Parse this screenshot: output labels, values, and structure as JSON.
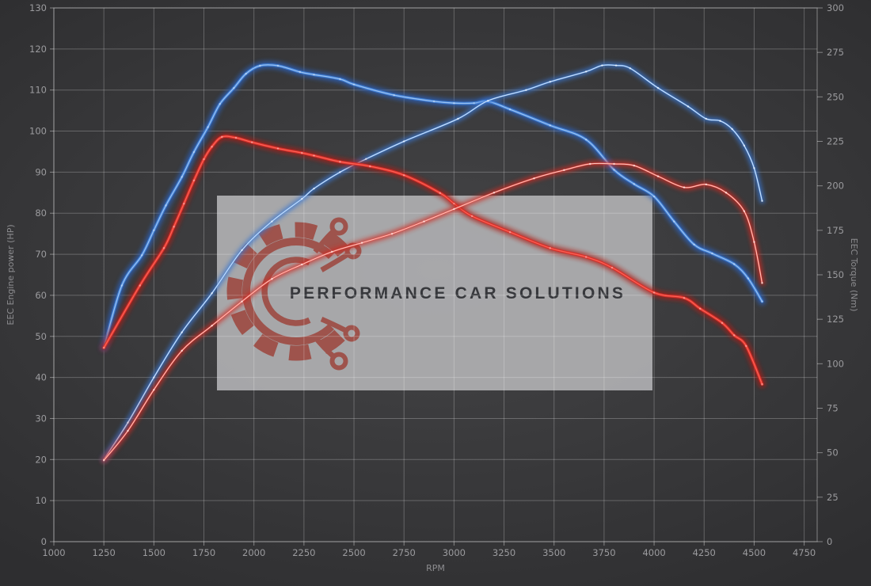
{
  "watermark": {
    "text": "PERFORMANCE CAR SOLUTIONS",
    "box_color": "#b3b3b5",
    "logo_color": "#9d4138",
    "text_color": "#37383c"
  },
  "colors": {
    "background": "#3a3a3c",
    "grid": "#6a6a6d",
    "axis_labels": "#9b9b9e",
    "blue_main": "#3f7fd6",
    "red_main": "#d93028"
  },
  "chart_data": {
    "type": "line",
    "title": "",
    "xlabel": "RPM",
    "ylabel_left": "EEC Engine power (HP)",
    "ylabel_right": "EEC Torque (Nm)",
    "x_axis": {
      "min": 1000,
      "max": 4750,
      "step": 250,
      "ticks": [
        1000,
        1250,
        1500,
        1750,
        2000,
        2250,
        2500,
        2750,
        3000,
        3250,
        3500,
        3750,
        4000,
        4250,
        4500,
        4750
      ]
    },
    "left_axis": {
      "min": 0,
      "max": 130,
      "step": 10,
      "ticks": [
        0,
        10,
        20,
        30,
        40,
        50,
        60,
        70,
        80,
        90,
        100,
        110,
        120,
        130
      ]
    },
    "right_axis": {
      "min": 0,
      "max": 300,
      "step": 25,
      "ticks": [
        0,
        25,
        50,
        75,
        100,
        125,
        150,
        175,
        200,
        225,
        250,
        275,
        300
      ]
    },
    "grid": true,
    "legend": false,
    "series": [
      {
        "name": "torque-tuned-blue",
        "axis": "right",
        "unit": "Nm",
        "style": "thick",
        "color": "#3f7fd6",
        "glow": "#2a64c2",
        "core": "#a8cbf5",
        "points": [
          [
            1250,
            109
          ],
          [
            1340,
            144
          ],
          [
            1440,
            161
          ],
          [
            1500,
            175
          ],
          [
            1560,
            189
          ],
          [
            1640,
            205
          ],
          [
            1700,
            219
          ],
          [
            1770,
            233
          ],
          [
            1830,
            246
          ],
          [
            1900,
            255
          ],
          [
            1960,
            263
          ],
          [
            2030,
            267.5
          ],
          [
            2120,
            267.5
          ],
          [
            2230,
            264
          ],
          [
            2300,
            262.5
          ],
          [
            2430,
            260
          ],
          [
            2500,
            257
          ],
          [
            2700,
            251
          ],
          [
            2900,
            247.5
          ],
          [
            3000,
            246.5
          ],
          [
            3100,
            246.5
          ],
          [
            3170,
            247.5
          ],
          [
            3280,
            243
          ],
          [
            3480,
            234
          ],
          [
            3660,
            226
          ],
          [
            3800,
            209
          ],
          [
            3900,
            201
          ],
          [
            4000,
            194
          ],
          [
            4100,
            180
          ],
          [
            4200,
            167
          ],
          [
            4290,
            162
          ],
          [
            4400,
            156
          ],
          [
            4470,
            148
          ],
          [
            4540,
            135
          ]
        ]
      },
      {
        "name": "power-tuned-blue",
        "axis": "left",
        "unit": "HP",
        "style": "thin",
        "color": "#5b97e3",
        "glow": "#3a77d0",
        "core": "#e9f2ff",
        "points": [
          [
            1250,
            20
          ],
          [
            1370,
            29
          ],
          [
            1500,
            40
          ],
          [
            1640,
            51
          ],
          [
            1790,
            60.5
          ],
          [
            1940,
            71
          ],
          [
            2090,
            78
          ],
          [
            2240,
            83.5
          ],
          [
            2300,
            86
          ],
          [
            2430,
            90
          ],
          [
            2560,
            93.2
          ],
          [
            2750,
            97.5
          ],
          [
            3020,
            103
          ],
          [
            3170,
            107.4
          ],
          [
            3360,
            110
          ],
          [
            3480,
            112
          ],
          [
            3660,
            114.5
          ],
          [
            3740,
            116
          ],
          [
            3810,
            116
          ],
          [
            3880,
            115.3
          ],
          [
            4020,
            110.5
          ],
          [
            4170,
            106
          ],
          [
            4260,
            103
          ],
          [
            4330,
            102.5
          ],
          [
            4390,
            100.5
          ],
          [
            4450,
            96.5
          ],
          [
            4500,
            91
          ],
          [
            4540,
            83
          ]
        ]
      },
      {
        "name": "torque-stock-red",
        "axis": "right",
        "unit": "Nm",
        "style": "thick",
        "color": "#d93028",
        "glow": "#ad1d16",
        "core": "#ff6a5e",
        "points": [
          [
            1250,
            109
          ],
          [
            1430,
            144
          ],
          [
            1550,
            165
          ],
          [
            1600,
            177
          ],
          [
            1650,
            190
          ],
          [
            1700,
            203
          ],
          [
            1750,
            215
          ],
          [
            1790,
            222
          ],
          [
            1840,
            227.5
          ],
          [
            1910,
            227
          ],
          [
            1990,
            224.5
          ],
          [
            2120,
            221
          ],
          [
            2240,
            218.5
          ],
          [
            2300,
            217
          ],
          [
            2430,
            213.5
          ],
          [
            2580,
            211
          ],
          [
            2750,
            206
          ],
          [
            2930,
            196
          ],
          [
            3000,
            190
          ],
          [
            3090,
            183
          ],
          [
            3280,
            174
          ],
          [
            3480,
            165
          ],
          [
            3660,
            160
          ],
          [
            3790,
            154
          ],
          [
            4000,
            140
          ],
          [
            4150,
            137
          ],
          [
            4230,
            131
          ],
          [
            4340,
            123
          ],
          [
            4400,
            116
          ],
          [
            4460,
            110
          ],
          [
            4540,
            88.5
          ]
        ]
      },
      {
        "name": "power-stock-red",
        "axis": "left",
        "unit": "HP",
        "style": "thin",
        "color": "#f0544a",
        "glow": "#cf2a22",
        "core": "#ffd9d4",
        "points": [
          [
            1250,
            19.8
          ],
          [
            1370,
            27
          ],
          [
            1500,
            37
          ],
          [
            1640,
            46.5
          ],
          [
            1790,
            52.6
          ],
          [
            1940,
            58.5
          ],
          [
            2090,
            64
          ],
          [
            2240,
            67.5
          ],
          [
            2390,
            70.6
          ],
          [
            2540,
            72.8
          ],
          [
            2690,
            75
          ],
          [
            2850,
            78
          ],
          [
            3000,
            81
          ],
          [
            3200,
            85
          ],
          [
            3400,
            88.5
          ],
          [
            3550,
            90.5
          ],
          [
            3680,
            92
          ],
          [
            3800,
            92
          ],
          [
            3900,
            91.6
          ],
          [
            4020,
            89
          ],
          [
            4150,
            86.3
          ],
          [
            4260,
            87
          ],
          [
            4360,
            85
          ],
          [
            4450,
            80.5
          ],
          [
            4500,
            73
          ],
          [
            4540,
            63
          ]
        ]
      }
    ]
  }
}
